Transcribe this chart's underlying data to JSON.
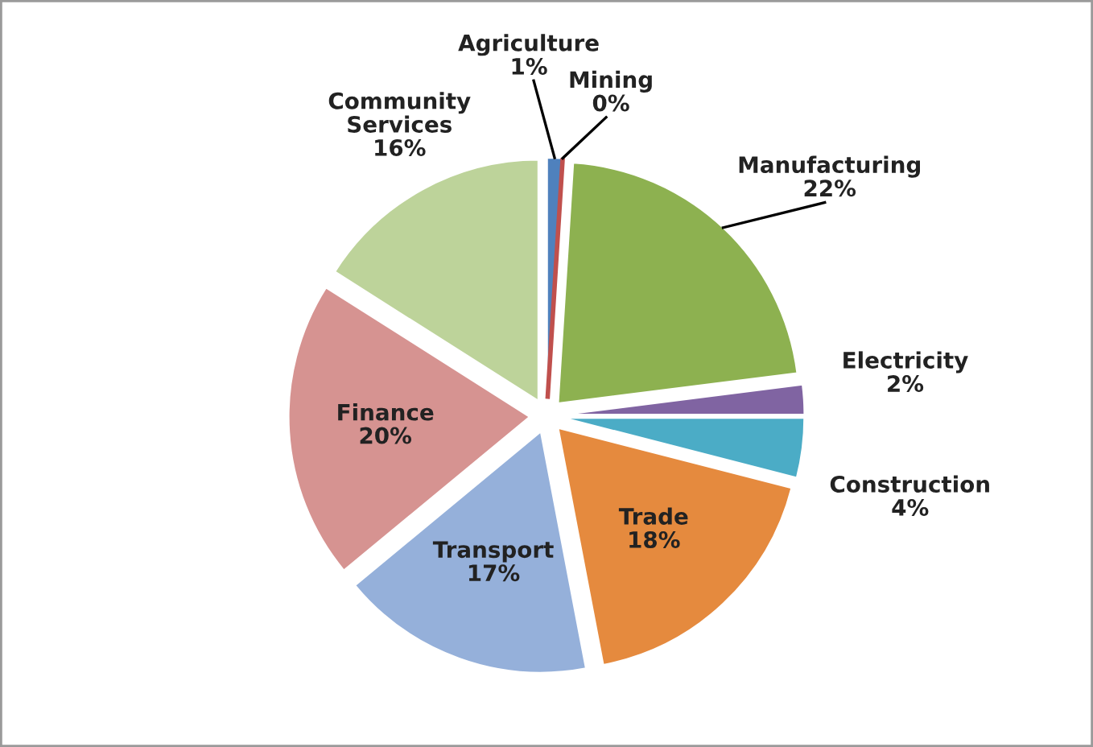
{
  "chart_data": {
    "type": "pie",
    "categories": [
      "Agriculture",
      "Mining",
      "Manufacturing",
      "Electricity",
      "Construction",
      "Trade",
      "Transport",
      "Finance",
      "Community Services"
    ],
    "values": [
      1,
      0,
      22,
      2,
      4,
      18,
      17,
      20,
      16
    ],
    "value_labels": [
      "1%",
      "0%",
      "22%",
      "2%",
      "4%",
      "18%",
      "17%",
      "20%",
      "16%"
    ],
    "colors": [
      "#4f81bd",
      "#c0504d",
      "#8db150",
      "#8064a2",
      "#4bacc6",
      "#e58a3e",
      "#95b0da",
      "#d69391",
      "#bdd39a"
    ]
  }
}
